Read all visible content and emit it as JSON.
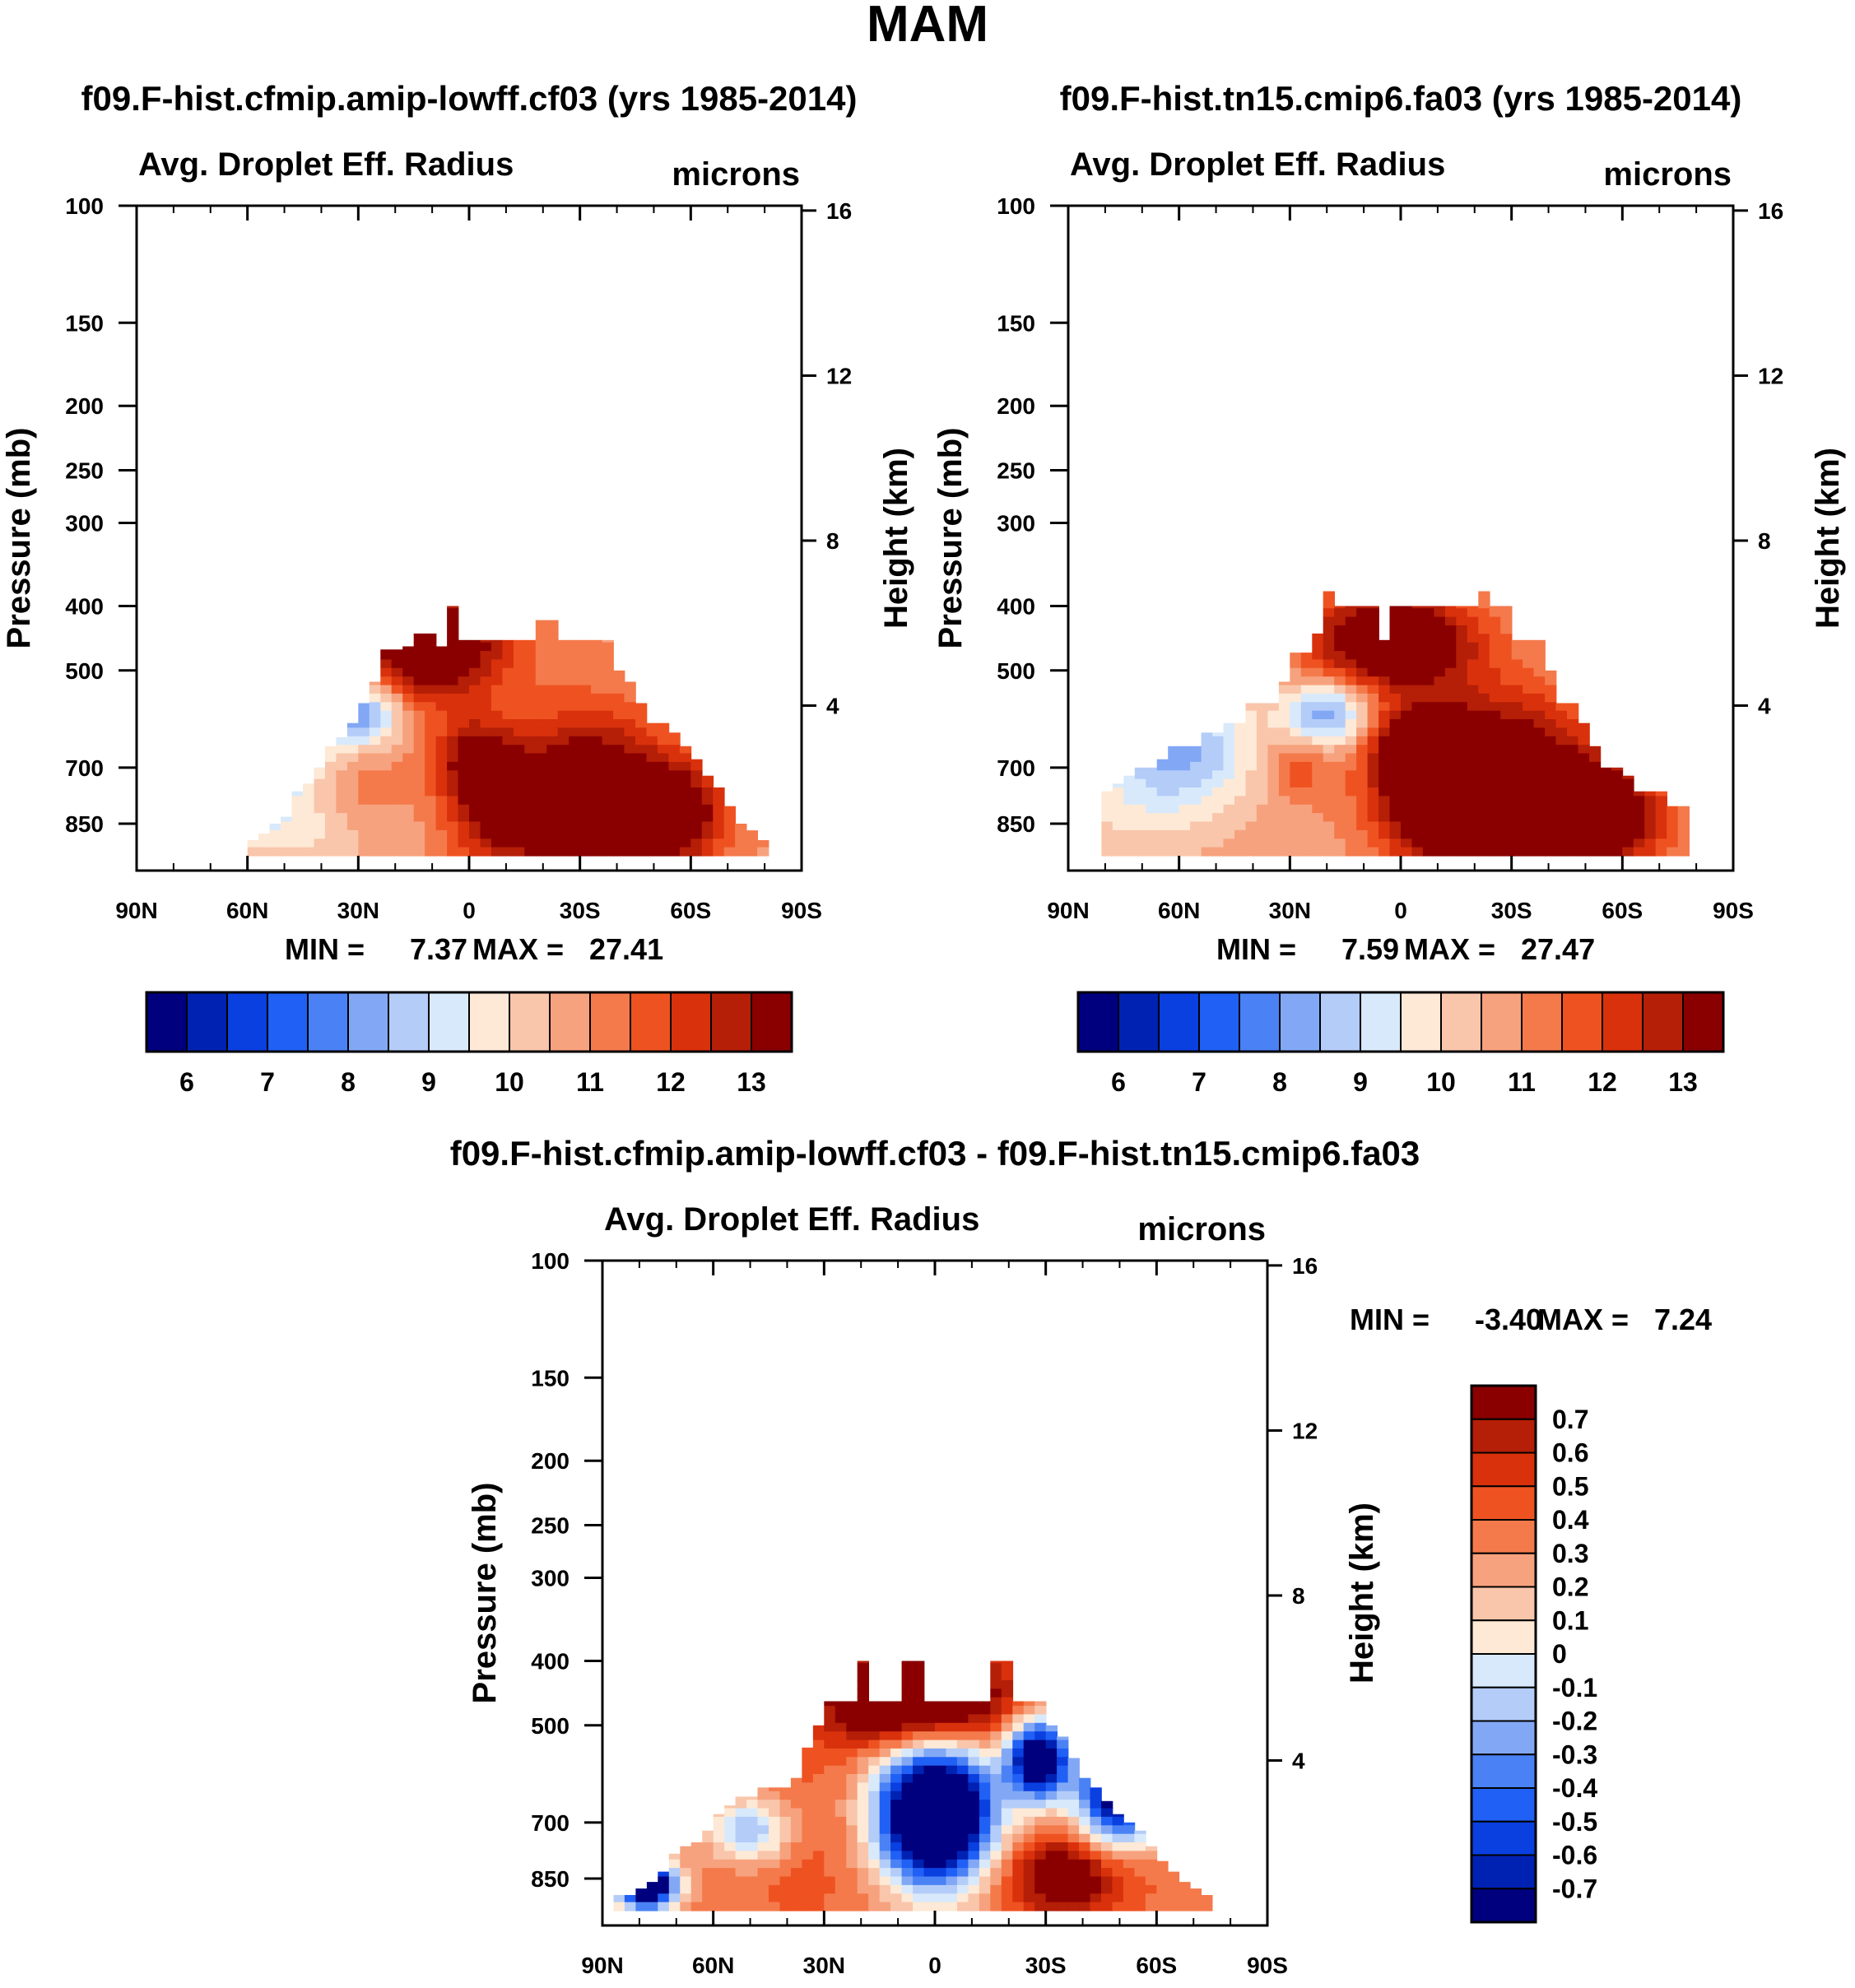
{
  "main_title": "MAM",
  "colors": {
    "abs_scale": [
      "#00007f",
      "#0022b3",
      "#0a3fe0",
      "#2060f5",
      "#4a82f5",
      "#82a8f5",
      "#b4ccf8",
      "#d8e9fb",
      "#fde9d6",
      "#f9c6ab",
      "#f7a27e",
      "#f47a4c",
      "#ef5221",
      "#d9310c",
      "#b51e07",
      "#8a0000"
    ],
    "diff_scale": [
      "#8a0000",
      "#b51e07",
      "#d9310c",
      "#ef5221",
      "#f47a4c",
      "#f7a27e",
      "#f9c6ab",
      "#fde9d6",
      "#d8e9fb",
      "#b4ccf8",
      "#82a8f5",
      "#4a82f5",
      "#2060f5",
      "#0a3fe0",
      "#0022b3",
      "#00007f"
    ]
  },
  "chart_data": [
    {
      "type": "heatmap",
      "case_title": "f09.F-hist.cfmip.amip-lowff.cf03 (yrs 1985-2014)",
      "title": "Avg. Droplet Eff. Radius",
      "units": "microns",
      "ylabel": "Pressure (mb)",
      "ylabel_right": "Height (km)",
      "x_ticks": [
        "90N",
        "60N",
        "30N",
        "0",
        "30S",
        "60S",
        "90S"
      ],
      "y_ticks": [
        "100",
        "150",
        "200",
        "250",
        "300",
        "400",
        "500",
        "700",
        "850"
      ],
      "y_ticks_right": [
        "16",
        "12",
        "8",
        "4"
      ],
      "stats": {
        "min_label": "MIN =",
        "min": "7.37",
        "max_label": "MAX =",
        "max": "27.41"
      },
      "colorbar_labels": [
        "6",
        "7",
        "8",
        "9",
        "10",
        "11",
        "12",
        "13"
      ],
      "top_p": [
        null,
        null,
        null,
        null,
        null,
        null,
        null,
        null,
        null,
        null,
        900,
        880,
        850,
        830,
        760,
        740,
        700,
        650,
        630,
        600,
        560,
        520,
        465,
        465,
        460,
        440,
        440,
        460,
        400,
        450,
        450,
        450,
        450,
        450,
        450,
        450,
        420,
        420,
        450,
        450,
        450,
        450,
        450,
        500,
        520,
        560,
        600,
        600,
        620,
        650,
        680,
        720,
        750,
        800,
        850,
        870,
        900,
        null,
        null,
        null
      ],
      "features": [
        {
          "lat": 10,
          "p": 460,
          "v": 14,
          "slat": 14,
          "slp": 0.13
        },
        {
          "lat": -32,
          "p": 780,
          "v": 14,
          "slat": 14,
          "slp": 0.2
        },
        {
          "lat": -55,
          "p": 820,
          "v": 13.5,
          "slat": 10,
          "slp": 0.12
        },
        {
          "lat": -2,
          "p": 680,
          "v": 12.8,
          "slat": 8,
          "slp": 0.1
        },
        {
          "lat": -8,
          "p": 830,
          "v": 12.5,
          "slat": 10,
          "slp": 0.12
        },
        {
          "lat": 30,
          "p": 760,
          "v": 11,
          "slat": 8,
          "slp": 0.12
        },
        {
          "lat": 28,
          "p": 580,
          "v": 7.6,
          "slat": 7,
          "slp": 0.08
        },
        {
          "lat": 65,
          "p": 700,
          "v": 7.9,
          "slat": 16,
          "slp": 0.14
        },
        {
          "lat": 50,
          "p": 620,
          "v": 8.6,
          "slat": 10,
          "slp": 0.09
        },
        {
          "lat": 45,
          "p": 880,
          "v": 9.5,
          "slat": 18,
          "slp": 0.1
        }
      ],
      "base": 10.4
    },
    {
      "type": "heatmap",
      "case_title": "f09.F-hist.tn15.cmip6.fa03 (yrs 1985-2014)",
      "title": "Avg. Droplet Eff. Radius",
      "units": "microns",
      "ylabel": "Pressure (mb)",
      "ylabel_right": "Height (km)",
      "x_ticks": [
        "90N",
        "60N",
        "30N",
        "0",
        "30S",
        "60S",
        "90S"
      ],
      "y_ticks": [
        "100",
        "150",
        "200",
        "250",
        "300",
        "400",
        "500",
        "700",
        "850"
      ],
      "y_ticks_right": [
        "16",
        "12",
        "8",
        "4"
      ],
      "stats": {
        "min_label": "MIN =",
        "min": "7.59",
        "max_label": "MAX =",
        "max": "27.47"
      },
      "colorbar_labels": [
        "6",
        "7",
        "8",
        "9",
        "10",
        "11",
        "12",
        "13"
      ],
      "top_p": [
        null,
        null,
        null,
        760,
        740,
        720,
        700,
        700,
        680,
        650,
        650,
        650,
        620,
        620,
        600,
        600,
        560,
        560,
        560,
        520,
        470,
        470,
        440,
        350,
        400,
        400,
        400,
        400,
        450,
        400,
        400,
        400,
        400,
        400,
        400,
        400,
        400,
        350,
        400,
        400,
        450,
        450,
        450,
        500,
        560,
        560,
        600,
        650,
        700,
        700,
        720,
        760,
        760,
        760,
        800,
        800,
        null,
        null,
        null,
        null
      ],
      "features": [
        {
          "lat": 2,
          "p": 450,
          "v": 14,
          "slat": 16,
          "slp": 0.12
        },
        {
          "lat": -25,
          "p": 720,
          "v": 14,
          "slat": 20,
          "slp": 0.2
        },
        {
          "lat": -5,
          "p": 670,
          "v": 13.6,
          "slat": 8,
          "slp": 0.1
        },
        {
          "lat": -15,
          "p": 840,
          "v": 12.8,
          "slat": 12,
          "slp": 0.12
        },
        {
          "lat": -55,
          "p": 840,
          "v": 13.2,
          "slat": 12,
          "slp": 0.13
        },
        {
          "lat": 28,
          "p": 700,
          "v": 11.3,
          "slat": 6,
          "slp": 0.08
        },
        {
          "lat": 20,
          "p": 580,
          "v": 7.4,
          "slat": 8,
          "slp": 0.08
        },
        {
          "lat": 60,
          "p": 660,
          "v": 7.8,
          "slat": 14,
          "slp": 0.15
        },
        {
          "lat": 75,
          "p": 820,
          "v": 9.7,
          "slat": 12,
          "slp": 0.12
        }
      ],
      "base": 10.2
    },
    {
      "type": "heatmap",
      "case_title": "f09.F-hist.cfmip.amip-lowff.cf03 - f09.F-hist.tn15.cmip6.fa03",
      "title": "Avg. Droplet Eff. Radius",
      "units": "microns",
      "ylabel": "Pressure (mb)",
      "ylabel_right": "Height (km)",
      "x_ticks": [
        "90N",
        "60N",
        "30N",
        "0",
        "30S",
        "60S",
        "90S"
      ],
      "y_ticks": [
        "100",
        "150",
        "200",
        "250",
        "300",
        "400",
        "500",
        "700",
        "850"
      ],
      "y_ticks_right": [
        "16",
        "12",
        "8",
        "4"
      ],
      "stats": {
        "min_label": "MIN =",
        "min": "-3.40",
        "max_label": "MAX =",
        "max": "7.24"
      },
      "colorbar_labels": [
        "0.7",
        "0.6",
        "0.5",
        "0.4",
        "0.3",
        "0.2",
        "0.1",
        "0",
        "-0.1",
        "-0.2",
        "-0.3",
        "-0.4",
        "-0.5",
        "-0.6",
        "-0.7"
      ],
      "top_p": [
        null,
        900,
        900,
        880,
        860,
        830,
        780,
        760,
        750,
        720,
        680,
        660,
        640,
        640,
        620,
        620,
        620,
        600,
        540,
        500,
        460,
        460,
        460,
        400,
        460,
        460,
        460,
        400,
        400,
        460,
        460,
        460,
        460,
        460,
        460,
        400,
        400,
        460,
        460,
        460,
        500,
        520,
        560,
        600,
        620,
        650,
        680,
        700,
        720,
        760,
        800,
        830,
        860,
        880,
        900,
        null,
        null,
        null,
        null,
        null
      ],
      "features": [
        {
          "lat": 5,
          "p": 460,
          "v": 1.2,
          "slat": 18,
          "slp": 0.12
        },
        {
          "lat": 0,
          "p": 680,
          "v": -1.5,
          "slat": 11,
          "slp": 0.17
        },
        {
          "lat": 35,
          "p": 760,
          "v": 0.45,
          "slat": 18,
          "slp": 0.2
        },
        {
          "lat": -35,
          "p": 840,
          "v": 0.9,
          "slat": 12,
          "slp": 0.1
        },
        {
          "lat": -28,
          "p": 560,
          "v": -1,
          "slat": 6,
          "slp": 0.1
        },
        {
          "lat": -50,
          "p": 640,
          "v": -0.9,
          "slat": 8,
          "slp": 0.12
        },
        {
          "lat": 78,
          "p": 870,
          "v": -1.1,
          "slat": 6,
          "slp": 0.06
        },
        {
          "lat": 50,
          "p": 720,
          "v": -0.25,
          "slat": 8,
          "slp": 0.08
        }
      ],
      "base": 0.35
    }
  ]
}
